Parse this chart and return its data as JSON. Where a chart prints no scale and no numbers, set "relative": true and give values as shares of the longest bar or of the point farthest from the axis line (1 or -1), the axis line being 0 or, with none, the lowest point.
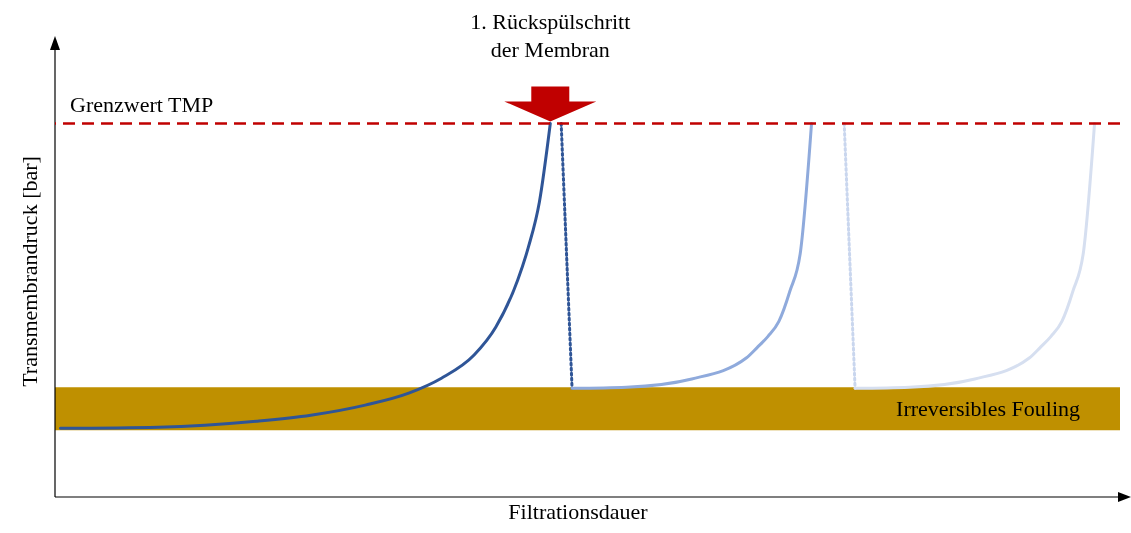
{
  "chart_data": {
    "type": "line",
    "relative": true,
    "xlabel": "Filtrationsdauer",
    "ylabel": "Transmembrandruck [bar]",
    "annotations": [
      "1. Rückspülschritt\nder Membran"
    ],
    "categories": [
      null,
      null,
      null,
      null,
      null,
      null,
      null,
      null,
      null,
      null,
      null,
      null,
      null,
      null,
      null,
      null,
      null,
      null,
      null,
      null,
      null,
      null,
      null,
      null,
      null,
      null,
      null,
      null,
      null,
      null,
      null,
      null,
      null,
      null,
      null,
      null,
      null,
      null,
      null,
      null,
      null,
      null,
      null,
      null,
      null,
      null,
      null,
      null,
      null,
      null,
      null,
      null,
      null,
      null,
      null,
      null,
      null,
      null,
      null,
      null,
      null,
      null,
      null,
      null,
      null,
      null,
      null,
      null,
      null,
      null,
      null,
      null,
      null,
      null,
      null,
      null,
      null,
      null,
      null,
      null,
      null,
      null,
      null,
      null,
      null,
      null,
      null,
      null,
      null,
      null,
      null,
      null,
      null,
      null,
      null,
      null
    ],
    "series": [
      {
        "color": "#2f5597",
        "values": [
          0.184,
          null,
          null,
          null,
          null,
          null,
          null,
          null,
          null,
          0.187,
          null,
          null,
          null,
          null,
          null,
          null,
          null,
          null,
          0.203,
          null,
          null,
          null,
          null,
          0.219,
          null,
          null,
          null,
          null,
          0.246,
          null,
          null,
          null,
          0.278,
          null,
          null,
          0.318,
          null,
          null,
          0.38,
          null,
          0.455,
          null,
          0.58,
          0.67,
          0.79,
          1,
          null,
          null,
          null,
          null,
          null,
          null,
          null,
          null,
          null,
          null,
          null,
          null,
          null,
          null,
          null,
          null,
          null,
          null,
          null,
          null,
          null,
          null,
          null,
          null,
          null,
          null,
          null,
          null,
          null,
          null,
          null,
          null,
          null,
          null,
          null,
          null,
          null,
          null,
          null,
          null,
          null,
          null,
          null,
          null,
          null,
          null,
          null,
          null,
          null,
          null
        ]
      },
      {
        "color": "#2f5597",
        "line_style": "dotted",
        "values": [
          null,
          null,
          null,
          null,
          null,
          null,
          null,
          null,
          null,
          null,
          null,
          null,
          null,
          null,
          null,
          null,
          null,
          null,
          null,
          null,
          null,
          null,
          null,
          null,
          null,
          null,
          null,
          null,
          null,
          null,
          null,
          null,
          null,
          null,
          null,
          null,
          null,
          null,
          null,
          null,
          null,
          null,
          null,
          null,
          null,
          null,
          1,
          0.291,
          null,
          null,
          null,
          null,
          null,
          null,
          null,
          null,
          null,
          null,
          null,
          null,
          null,
          null,
          null,
          null,
          null,
          null,
          null,
          null,
          null,
          null,
          null,
          null,
          null,
          null,
          null,
          null,
          null,
          null,
          null,
          null,
          null,
          null,
          null,
          null,
          null,
          null,
          null,
          null,
          null,
          null,
          null,
          null,
          null,
          null,
          null,
          null
        ]
      },
      {
        "color": "#8faadc",
        "values": [
          null,
          null,
          null,
          null,
          null,
          null,
          null,
          null,
          null,
          null,
          null,
          null,
          null,
          null,
          null,
          null,
          null,
          null,
          null,
          null,
          null,
          null,
          null,
          null,
          null,
          null,
          null,
          null,
          null,
          null,
          null,
          null,
          null,
          null,
          null,
          null,
          null,
          null,
          null,
          null,
          null,
          null,
          null,
          null,
          null,
          null,
          null,
          0.291,
          null,
          null,
          null,
          null,
          0.294,
          null,
          null,
          null,
          null,
          null,
          0.316,
          null,
          null,
          null,
          null,
          0.372,
          0.4,
          0.43,
          0.47,
          0.55,
          0.66,
          1,
          null,
          null,
          null,
          null,
          null,
          null,
          null,
          null,
          null,
          null,
          null,
          null,
          null,
          null,
          null,
          null,
          null,
          null,
          null,
          null,
          null,
          null,
          null,
          null,
          null,
          null
        ]
      },
      {
        "color": "#c9d6ee",
        "line_style": "dotted",
        "values": [
          null,
          null,
          null,
          null,
          null,
          null,
          null,
          null,
          null,
          null,
          null,
          null,
          null,
          null,
          null,
          null,
          null,
          null,
          null,
          null,
          null,
          null,
          null,
          null,
          null,
          null,
          null,
          null,
          null,
          null,
          null,
          null,
          null,
          null,
          null,
          null,
          null,
          null,
          null,
          null,
          null,
          null,
          null,
          null,
          null,
          null,
          null,
          null,
          null,
          null,
          null,
          null,
          null,
          null,
          null,
          null,
          null,
          null,
          null,
          null,
          null,
          null,
          null,
          null,
          null,
          null,
          null,
          null,
          null,
          null,
          null,
          null,
          1,
          0.291,
          null,
          null,
          null,
          null,
          null,
          null,
          null,
          null,
          null,
          null,
          null,
          null,
          null,
          null,
          null,
          null,
          null,
          null,
          null,
          null,
          null,
          null
        ]
      },
      {
        "color": "#d6dff0",
        "values": [
          null,
          null,
          null,
          null,
          null,
          null,
          null,
          null,
          null,
          null,
          null,
          null,
          null,
          null,
          null,
          null,
          null,
          null,
          null,
          null,
          null,
          null,
          null,
          null,
          null,
          null,
          null,
          null,
          null,
          null,
          null,
          null,
          null,
          null,
          null,
          null,
          null,
          null,
          null,
          null,
          null,
          null,
          null,
          null,
          null,
          null,
          null,
          null,
          null,
          null,
          null,
          null,
          null,
          null,
          null,
          null,
          null,
          null,
          null,
          null,
          null,
          null,
          null,
          null,
          null,
          null,
          null,
          null,
          null,
          null,
          null,
          null,
          null,
          0.291,
          null,
          null,
          null,
          null,
          0.294,
          null,
          null,
          null,
          null,
          null,
          0.316,
          null,
          null,
          null,
          null,
          0.372,
          0.4,
          0.43,
          0.47,
          0.55,
          0.66,
          1
        ]
      }
    ],
    "ref_lines": [
      {
        "axis": "y",
        "value": 1,
        "label": "Grenzwert TMP",
        "color": "#c00000",
        "line_style": "dashed"
      }
    ],
    "bands": [
      {
        "axis": "y",
        "from": 0.179,
        "to": 0.294,
        "label": "Irreversibles Fouling",
        "color": "#bf9000"
      }
    ]
  }
}
